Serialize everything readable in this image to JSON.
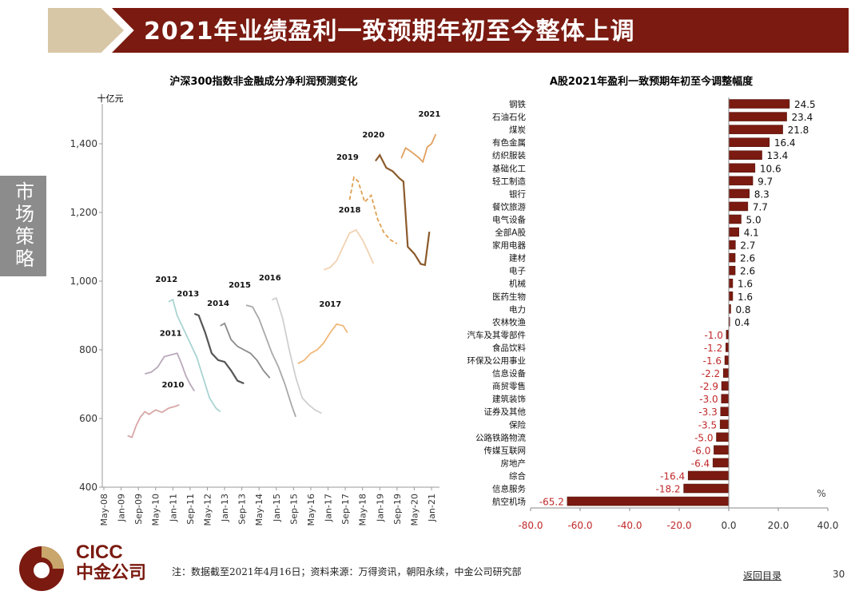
{
  "header": {
    "title": "2021年业绩盈利一致预期年初至今整体上调"
  },
  "side_tab": {
    "label": "市场策略"
  },
  "footer": {
    "note": "注：数据截至2021年4月16日；资料来源：万得资讯，朝阳永续，中金公司研究部",
    "back_link": "返回目录",
    "page_number": "30",
    "logo_en": "CICC",
    "logo_cn": "中金公司"
  },
  "colors": {
    "brand": "#7a1a10",
    "gold": "#d8c7a6",
    "negative_label": "#c0282a"
  },
  "chart_data": [
    {
      "type": "line",
      "title": "沪深300指数非金融成分净利润预测变化",
      "ylabel": "十亿元",
      "ylim": [
        400,
        1500
      ],
      "yticks": [
        400,
        600,
        800,
        1000,
        1200,
        1400
      ],
      "ytick_labels": [
        "400",
        "600",
        "800",
        "1,000",
        "1,200",
        "1,400"
      ],
      "xtick_labels": [
        "May-08",
        "Jan-09",
        "Sep-09",
        "May-10",
        "Jan-11",
        "Sep-11",
        "May-12",
        "Jan-13",
        "Sep-13",
        "May-14",
        "Jan-15",
        "Sep-15",
        "May-16",
        "Jan-17",
        "Sep-17",
        "May-18",
        "Jan-19",
        "Sep-19",
        "May-20",
        "Jan-21"
      ],
      "grid": false,
      "series": [
        {
          "name": "2010",
          "color": "#d9a6a6",
          "x": [
            "2009-04",
            "2009-06",
            "2009-08",
            "2009-10",
            "2009-12",
            "2010-02",
            "2010-05",
            "2010-08",
            "2010-11",
            "2011-02",
            "2011-04"
          ],
          "values": [
            550,
            545,
            580,
            605,
            620,
            612,
            625,
            618,
            630,
            635,
            640
          ]
        },
        {
          "name": "2011",
          "color": "#b9a9ba",
          "x": [
            "2009-12",
            "2010-03",
            "2010-06",
            "2010-09",
            "2010-12",
            "2011-03",
            "2011-05",
            "2011-07",
            "2011-09",
            "2011-11"
          ],
          "values": [
            730,
            735,
            750,
            780,
            785,
            790,
            760,
            725,
            700,
            680
          ]
        },
        {
          "name": "2012",
          "color": "#a9d3d3",
          "x": [
            "2010-11",
            "2011-01",
            "2011-03",
            "2011-06",
            "2011-09",
            "2011-12",
            "2012-03",
            "2012-06",
            "2012-09",
            "2012-11"
          ],
          "values": [
            940,
            946,
            900,
            860,
            820,
            780,
            720,
            660,
            630,
            620
          ]
        },
        {
          "name": "2013",
          "color": "#555555",
          "x": [
            "2011-11",
            "2012-01",
            "2012-04",
            "2012-07",
            "2012-10",
            "2013-01",
            "2013-04",
            "2013-07",
            "2013-10"
          ],
          "values": [
            905,
            900,
            850,
            790,
            770,
            765,
            740,
            710,
            702
          ]
        },
        {
          "name": "2014",
          "color": "#8a8a8a",
          "x": [
            "2012-11",
            "2013-01",
            "2013-04",
            "2013-07",
            "2013-10",
            "2014-01",
            "2014-04",
            "2014-07",
            "2014-10"
          ],
          "values": [
            870,
            877,
            830,
            810,
            800,
            790,
            770,
            740,
            718
          ]
        },
        {
          "name": "2015",
          "color": "#a9a9a9",
          "x": [
            "2013-11",
            "2014-02",
            "2014-05",
            "2014-08",
            "2014-11",
            "2015-02",
            "2015-05",
            "2015-08",
            "2015-10"
          ],
          "values": [
            930,
            925,
            890,
            840,
            790,
            750,
            700,
            640,
            605
          ]
        },
        {
          "name": "2016",
          "color": "#cfcfcf",
          "x": [
            "2014-11",
            "2015-01",
            "2015-04",
            "2015-07",
            "2015-10",
            "2016-01",
            "2016-04",
            "2016-07",
            "2016-10"
          ],
          "values": [
            945,
            951,
            890,
            800,
            720,
            660,
            640,
            625,
            615
          ]
        },
        {
          "name": "2017",
          "color": "#f0b878",
          "x": [
            "2015-11",
            "2016-02",
            "2016-05",
            "2016-08",
            "2016-11",
            "2017-02",
            "2017-05",
            "2017-08",
            "2017-10"
          ],
          "values": [
            760,
            770,
            790,
            800,
            820,
            850,
            875,
            870,
            850
          ]
        },
        {
          "name": "2018",
          "color": "#f2d2b2",
          "x": [
            "2016-11",
            "2017-02",
            "2017-05",
            "2017-08",
            "2017-11",
            "2018-02",
            "2018-05",
            "2018-08",
            "2018-10"
          ],
          "values": [
            1033,
            1040,
            1060,
            1100,
            1140,
            1149,
            1120,
            1080,
            1051
          ]
        },
        {
          "name": "2019",
          "color": "#e0a050",
          "dashed": true,
          "x": [
            "2017-11",
            "2018-01",
            "2018-03",
            "2018-06",
            "2018-09",
            "2018-12",
            "2019-03",
            "2019-06",
            "2019-09"
          ],
          "values": [
            1237,
            1302,
            1290,
            1230,
            1250,
            1180,
            1140,
            1120,
            1109
          ]
        },
        {
          "name": "2020",
          "color": "#8b5a2b",
          "x": [
            "2018-11",
            "2019-01",
            "2019-04",
            "2019-07",
            "2019-10",
            "2019-12",
            "2020-02",
            "2020-05",
            "2020-08",
            "2020-10",
            "2020-12"
          ],
          "values": [
            1350,
            1367,
            1330,
            1320,
            1300,
            1290,
            1100,
            1080,
            1050,
            1047,
            1144
          ]
        },
        {
          "name": "2021",
          "color": "#e0a060",
          "x": [
            "2019-11",
            "2020-01",
            "2020-04",
            "2020-07",
            "2020-09",
            "2020-11",
            "2021-01",
            "2021-03"
          ],
          "values": [
            1358,
            1388,
            1375,
            1360,
            1347,
            1390,
            1400,
            1428
          ]
        }
      ]
    },
    {
      "type": "bar",
      "orientation": "horizontal",
      "title": "A股2021年盈利一致预期年初至今调整幅度",
      "unit_label": "%",
      "xlim": [
        -80,
        40
      ],
      "xticks": [
        -80,
        -60,
        -40,
        -20,
        0,
        20,
        40
      ],
      "xtick_labels": [
        "-80.0",
        "-60.0",
        "-40.0",
        "-20.0",
        "0.0",
        "20.0",
        "40.0"
      ],
      "categories": [
        "钢铁",
        "石油石化",
        "煤炭",
        "有色金属",
        "纺织服装",
        "基础化工",
        "轻工制造",
        "银行",
        "餐饮旅游",
        "电气设备",
        "全部A股",
        "家用电器",
        "建材",
        "电子",
        "机械",
        "医药生物",
        "电力",
        "农林牧渔",
        "汽车及其零部件",
        "食品饮料",
        "环保及公用事业",
        "信息设备",
        "商贸零售",
        "建筑装饰",
        "证券及其他",
        "保险",
        "公路铁路物流",
        "传媒互联网",
        "房地产",
        "综合",
        "信息服务",
        "航空机场"
      ],
      "values": [
        24.5,
        23.4,
        21.8,
        16.4,
        13.4,
        10.6,
        9.7,
        8.3,
        7.7,
        5.0,
        4.1,
        2.7,
        2.6,
        2.6,
        1.6,
        1.6,
        0.8,
        0.4,
        -1.0,
        -1.2,
        -1.6,
        -2.2,
        -2.9,
        -3.0,
        -3.3,
        -3.5,
        -5.0,
        -6.0,
        -6.4,
        -16.4,
        -18.2,
        -65.2
      ],
      "value_labels": [
        "24.5",
        "23.4",
        "21.8",
        "16.4",
        "13.4",
        "10.6",
        "9.7",
        "8.3",
        "7.7",
        "5.0",
        "4.1",
        "2.7",
        "2.6",
        "2.6",
        "1.6",
        "1.6",
        "0.8",
        "0.4",
        "-1.0",
        "-1.2",
        "-1.6",
        "-2.2",
        "-2.9",
        "-3.0",
        "-3.3",
        "-3.5",
        "-5.0",
        "-6.0",
        "-6.4",
        "-16.4",
        "-18.2",
        "-65.2"
      ],
      "bar_color": "#7a1a10",
      "grid": false
    }
  ]
}
